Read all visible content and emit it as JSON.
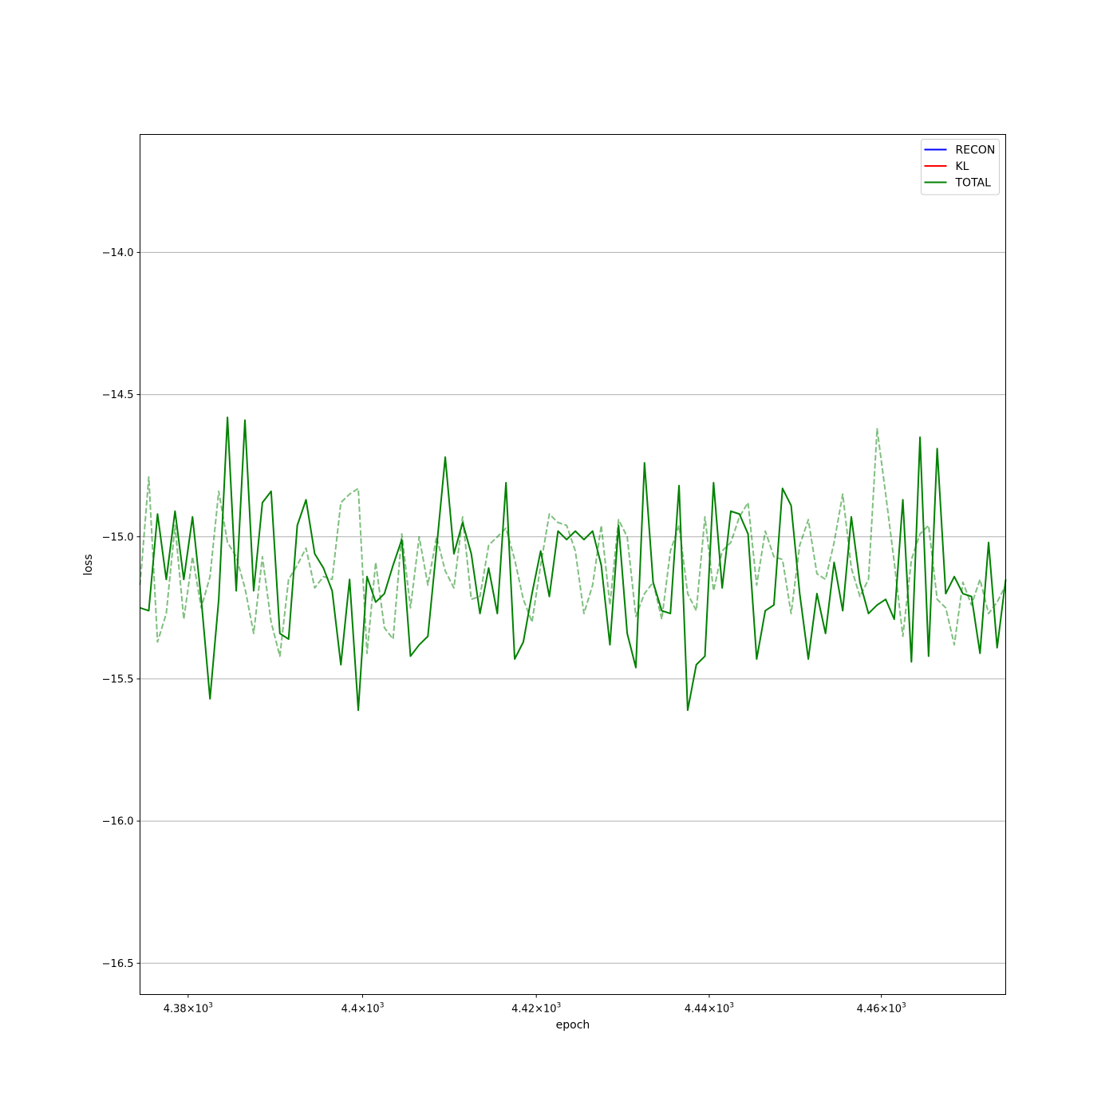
{
  "chart_data": {
    "type": "line",
    "xlabel": "epoch",
    "ylabel": "loss",
    "x_scale": "log",
    "xlim": [
      4374.5,
      4474.5
    ],
    "ylim": [
      -16.61,
      -13.585
    ],
    "grid": {
      "x": false,
      "y": true
    },
    "legend_placement": "top-right",
    "x_ticks": [
      {
        "value": 4380,
        "mantissa": "4.38",
        "exponent": "3"
      },
      {
        "value": 4400,
        "mantissa": "4.4",
        "exponent": "3"
      },
      {
        "value": 4420,
        "mantissa": "4.42",
        "exponent": "3"
      },
      {
        "value": 4440,
        "mantissa": "4.44",
        "exponent": "3"
      },
      {
        "value": 4460,
        "mantissa": "4.46",
        "exponent": "3"
      }
    ],
    "y_ticks": [
      {
        "value": -14.0,
        "label": "−14.0"
      },
      {
        "value": -14.5,
        "label": "−14.5"
      },
      {
        "value": -15.0,
        "label": "−15.0"
      },
      {
        "value": -15.5,
        "label": "−15.5"
      },
      {
        "value": -16.0,
        "label": "−16.0"
      },
      {
        "value": -16.5,
        "label": "−16.5"
      }
    ],
    "x_start": 4374.5,
    "x_step": 1,
    "series": [
      {
        "name": "RECON",
        "color": "#0000ff",
        "style": "solid",
        "values": []
      },
      {
        "name": "KL",
        "color": "#ff0000",
        "style": "solid",
        "values": []
      },
      {
        "name": "TOTAL",
        "color": "#008000",
        "style": "solid",
        "values": [
          -15.25,
          -15.26,
          -14.92,
          -15.15,
          -14.91,
          -15.15,
          -14.93,
          -15.22,
          -15.57,
          -15.22,
          -14.58,
          -15.19,
          -14.59,
          -15.19,
          -14.88,
          -14.84,
          -15.34,
          -15.36,
          -14.96,
          -14.87,
          -15.06,
          -15.11,
          -15.19,
          -15.45,
          -15.15,
          -15.61,
          -15.14,
          -15.23,
          -15.2,
          -15.1,
          -15.01,
          -15.42,
          -15.38,
          -15.35,
          -15.04,
          -14.72,
          -15.06,
          -14.95,
          -15.06,
          -15.27,
          -15.11,
          -15.27,
          -14.81,
          -15.43,
          -15.37,
          -15.2,
          -15.05,
          -15.21,
          -14.98,
          -15.01,
          -14.98,
          -15.01,
          -14.98,
          -15.1,
          -15.38,
          -14.96,
          -15.34,
          -15.46,
          -14.74,
          -15.16,
          -15.26,
          -15.27,
          -14.82,
          -15.61,
          -15.45,
          -15.42,
          -14.81,
          -15.18,
          -14.91,
          -14.92,
          -14.99,
          -15.43,
          -15.26,
          -15.24,
          -14.83,
          -14.89,
          -15.2,
          -15.43,
          -15.2,
          -15.34,
          -15.09,
          -15.26,
          -14.93,
          -15.16,
          -15.27,
          -15.24,
          -15.22,
          -15.29,
          -14.87,
          -15.44,
          -14.65,
          -15.42,
          -14.69,
          -15.2,
          -15.14,
          -15.2,
          -15.21,
          -15.41,
          -15.02,
          -15.39,
          -15.15
        ]
      },
      {
        "color": "#008000",
        "style": "dashed",
        "opacity": 0.5,
        "values": [
          -15.17,
          -14.79,
          -15.37,
          -15.27,
          -14.96,
          -15.29,
          -15.07,
          -15.25,
          -15.14,
          -14.84,
          -15.02,
          -15.07,
          -15.18,
          -15.34,
          -15.07,
          -15.3,
          -15.42,
          -15.15,
          -15.1,
          -15.04,
          -15.18,
          -15.14,
          -15.15,
          -14.88,
          -14.85,
          -14.83,
          -15.41,
          -15.09,
          -15.32,
          -15.36,
          -14.99,
          -15.25,
          -15.0,
          -15.17,
          -15.0,
          -15.12,
          -15.18,
          -14.93,
          -15.22,
          -15.21,
          -15.03,
          -15.0,
          -14.97,
          -15.08,
          -15.22,
          -15.3,
          -15.1,
          -14.92,
          -14.95,
          -14.96,
          -15.05,
          -15.27,
          -15.17,
          -14.96,
          -15.24,
          -14.94,
          -15.0,
          -15.28,
          -15.2,
          -15.16,
          -15.29,
          -15.05,
          -14.96,
          -15.2,
          -15.26,
          -14.93,
          -15.19,
          -15.05,
          -15.02,
          -14.93,
          -14.88,
          -15.17,
          -14.98,
          -15.07,
          -15.08,
          -15.27,
          -15.03,
          -14.94,
          -15.13,
          -15.15,
          -15.02,
          -14.85,
          -15.11,
          -15.21,
          -15.15,
          -14.62,
          -14.85,
          -15.09,
          -15.35,
          -15.08,
          -14.99,
          -14.96,
          -15.22,
          -15.25,
          -15.38,
          -15.16,
          -15.24,
          -15.15,
          -15.27,
          -15.23,
          -15.17
        ]
      }
    ]
  }
}
